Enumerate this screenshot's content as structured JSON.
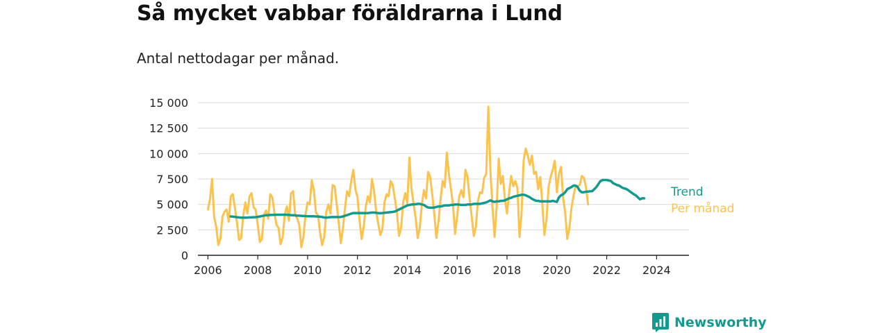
{
  "title": "Så mycket vabbar föräldrarna i Lund",
  "subtitle": "Antal nettodagar per månad.",
  "brand": "Newsworthy",
  "colors": {
    "trend": "#13998d",
    "monthly": "#fcc24e",
    "grid": "#d9d9d9",
    "axis": "#222222",
    "brand": "#13998d"
  },
  "chart_data": {
    "type": "line",
    "title": "Så mycket vabbar föräldrarna i Lund",
    "subtitle": "Antal nettodagar per månad.",
    "xlabel": "",
    "ylabel": "",
    "xlim": [
      2005.6,
      2025.3
    ],
    "ylim": [
      0,
      15000
    ],
    "x_ticks": [
      2006,
      2008,
      2010,
      2012,
      2014,
      2016,
      2018,
      2020,
      2022,
      2024
    ],
    "x_tick_labels": [
      "2006",
      "2008",
      "2010",
      "2012",
      "2014",
      "2016",
      "2018",
      "2020",
      "2022",
      "2024"
    ],
    "y_ticks": [
      0,
      2500,
      5000,
      7500,
      10000,
      12500,
      15000
    ],
    "y_tick_labels": [
      "0",
      "2 500",
      "5 000",
      "7 500",
      "10 000",
      "12 500",
      "15 000"
    ],
    "grid": true,
    "legend": "inline-right",
    "series": [
      {
        "name": "Per månad",
        "color": "#fcc24e",
        "x_start": 2006.0,
        "x_step": 0.083333,
        "values": [
          4500,
          5500,
          7500,
          3800,
          2800,
          1000,
          1600,
          3800,
          4300,
          4500,
          3300,
          5800,
          6000,
          4700,
          3200,
          1500,
          1700,
          3900,
          5200,
          4100,
          5800,
          6100,
          4700,
          4500,
          3000,
          1300,
          1600,
          4000,
          4400,
          3600,
          6000,
          5700,
          4200,
          3000,
          2700,
          1100,
          1800,
          4000,
          4800,
          3400,
          6100,
          6300,
          4000,
          3600,
          3000,
          800,
          1800,
          4000,
          5200,
          5000,
          7400,
          6400,
          4200,
          3900,
          2200,
          1000,
          1800,
          4300,
          5000,
          4100,
          6900,
          6800,
          5000,
          3100,
          1200,
          2600,
          4600,
          6300,
          5800,
          7300,
          8400,
          6500,
          5700,
          3400,
          1600,
          2800,
          4800,
          5800,
          5200,
          7500,
          6300,
          4300,
          3100,
          2000,
          2600,
          5200,
          6000,
          5800,
          7300,
          6900,
          5600,
          4200,
          1900,
          2700,
          5200,
          6100,
          5100,
          9600,
          6600,
          5100,
          3700,
          1700,
          2700,
          5000,
          6400,
          5600,
          8200,
          7700,
          6000,
          4100,
          1700,
          3300,
          5500,
          7300,
          6700,
          10100,
          8000,
          6500,
          4900,
          2100,
          3800,
          5800,
          6400,
          5700,
          8400,
          7700,
          5500,
          3800,
          1900,
          2800,
          5300,
          6200,
          6100,
          7600,
          8000,
          14600,
          8300,
          4700,
          1800,
          4800,
          9500,
          7000,
          7800,
          5500,
          4100,
          6100,
          7800,
          6800,
          7300,
          6600,
          1800,
          4100,
          9300,
          10500,
          9800,
          8900,
          9800,
          8000,
          8200,
          6500,
          7700,
          5000,
          2000,
          3500,
          6700,
          7700,
          8400,
          9300,
          6200,
          8000,
          8700,
          5600,
          4200,
          1600,
          2600,
          4600,
          5800,
          6800,
          6800,
          6900,
          7800,
          7600,
          6700,
          5000
        ]
      },
      {
        "name": "Trend",
        "color": "#13998d",
        "x_start": 2006.917,
        "x_step": 0.083333,
        "values": [
          3820,
          3800,
          3780,
          3740,
          3720,
          3700,
          3700,
          3700,
          3710,
          3720,
          3730,
          3740,
          3750,
          3780,
          3820,
          3860,
          3900,
          3940,
          3950,
          3960,
          3970,
          3980,
          3990,
          3990,
          3990,
          3990,
          3990,
          3980,
          3970,
          3950,
          3940,
          3920,
          3900,
          3890,
          3880,
          3870,
          3850,
          3840,
          3830,
          3830,
          3830,
          3820,
          3810,
          3790,
          3760,
          3720,
          3700,
          3720,
          3750,
          3760,
          3760,
          3760,
          3760,
          3770,
          3820,
          3890,
          3950,
          4020,
          4100,
          4150,
          4150,
          4150,
          4150,
          4150,
          4150,
          4150,
          4150,
          4180,
          4200,
          4200,
          4180,
          4150,
          4140,
          4150,
          4180,
          4200,
          4220,
          4240,
          4260,
          4300,
          4400,
          4500,
          4600,
          4700,
          4800,
          4900,
          4950,
          5000,
          5000,
          5020,
          5050,
          5050,
          5000,
          4950,
          4800,
          4700,
          4680,
          4680,
          4700,
          4750,
          4800,
          4800,
          4850,
          4900,
          4900,
          4900,
          4950,
          4950,
          5000,
          5000,
          4980,
          4950,
          4950,
          4950,
          5000,
          5000,
          5000,
          5050,
          5050,
          5050,
          5050,
          5100,
          5150,
          5200,
          5300,
          5400,
          5300,
          5250,
          5300,
          5300,
          5350,
          5350,
          5400,
          5500,
          5600,
          5650,
          5750,
          5800,
          5850,
          5900,
          5950,
          5950,
          5900,
          5800,
          5700,
          5550,
          5450,
          5350,
          5350,
          5300,
          5300,
          5300,
          5300,
          5300,
          5300,
          5350,
          5300,
          5250,
          5700,
          5900,
          6000,
          6200,
          6500,
          6600,
          6700,
          6850,
          6850,
          6700,
          6350,
          6200,
          6200,
          6250,
          6250,
          6300,
          6300,
          6500,
          6700,
          7000,
          7300,
          7400,
          7400,
          7400,
          7350,
          7300,
          7100,
          7000,
          6900,
          6850,
          6700,
          6600,
          6550,
          6450,
          6300,
          6150,
          6000,
          5900,
          5700,
          5500,
          5600,
          5600
        ]
      }
    ]
  }
}
